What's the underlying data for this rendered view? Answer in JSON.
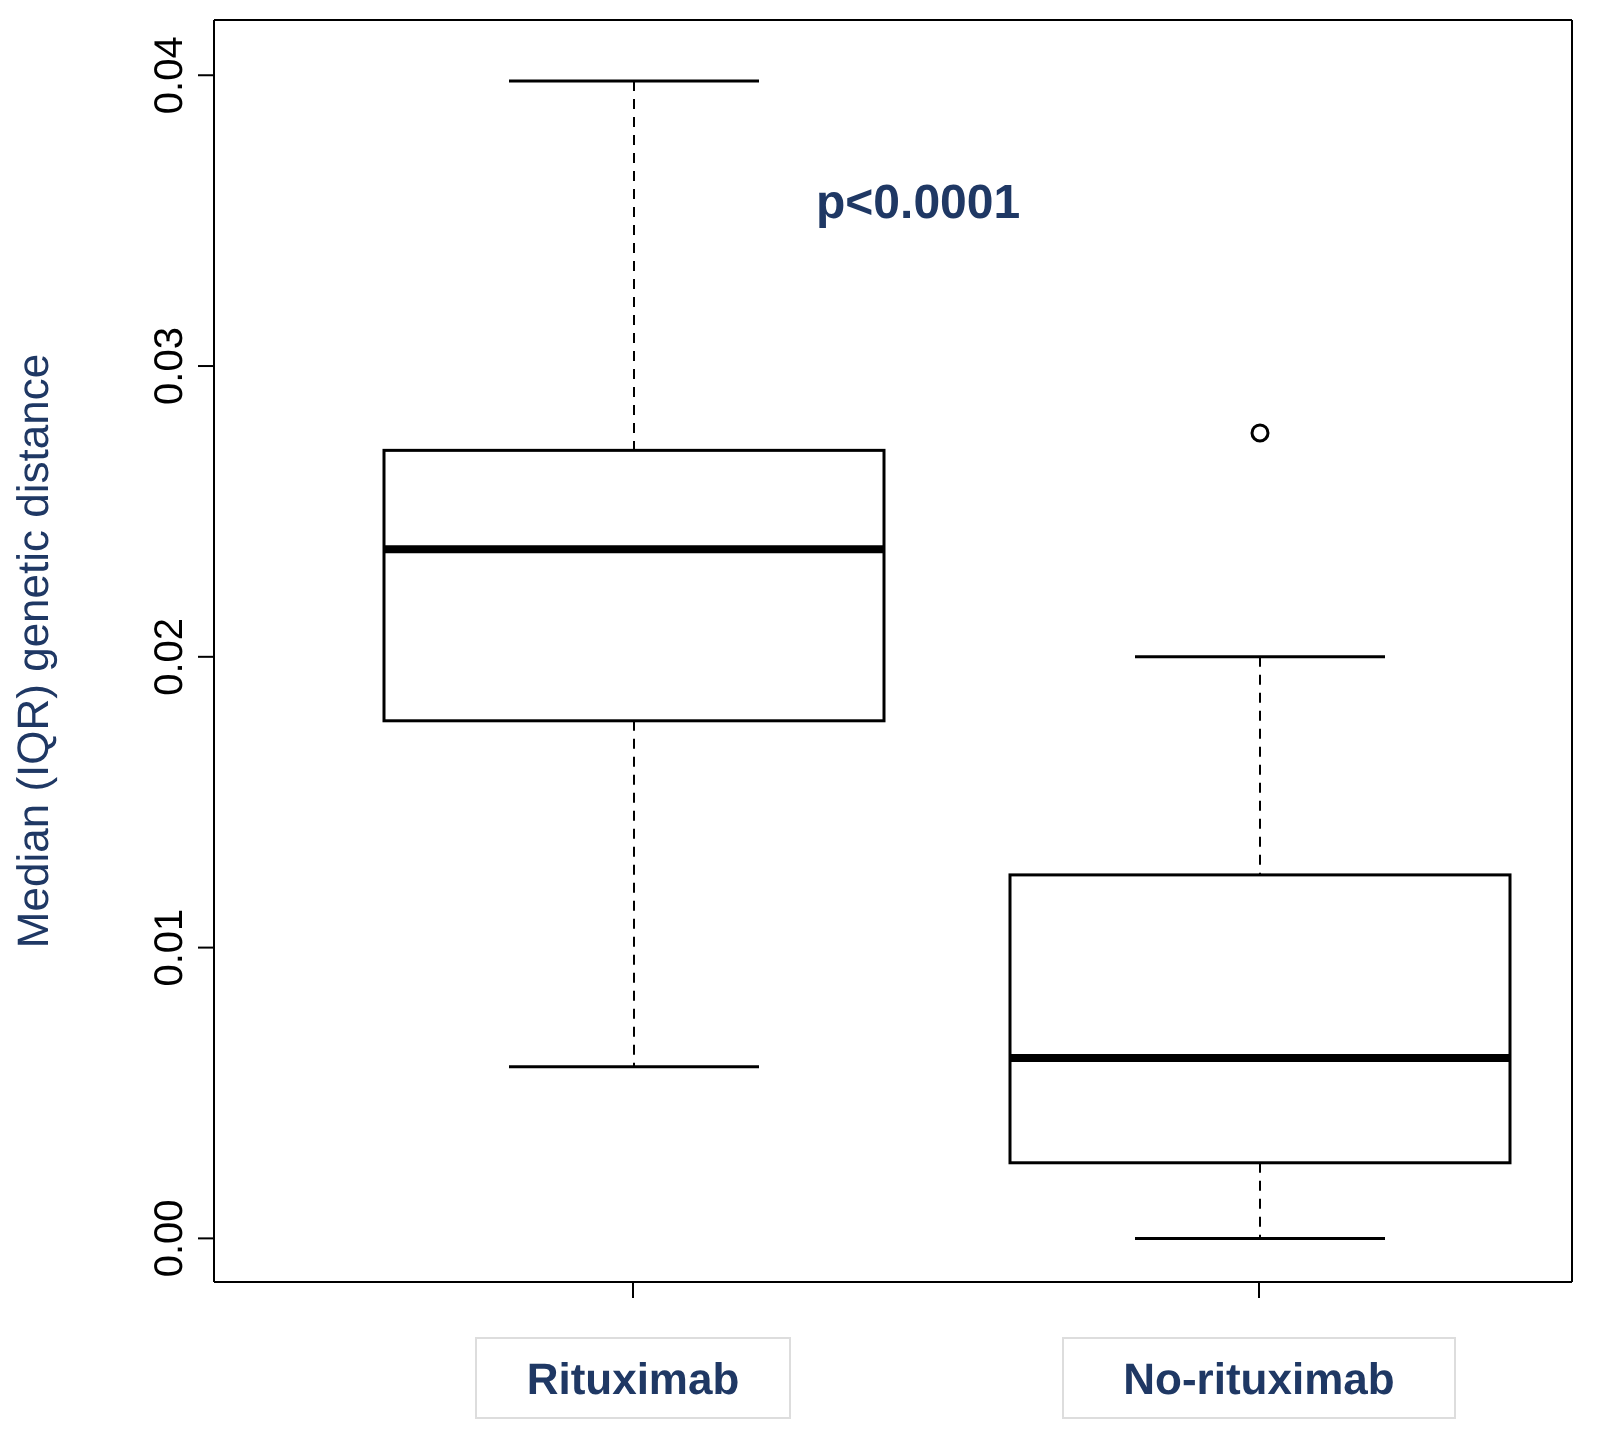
{
  "chart_data": {
    "type": "box",
    "ylabel": "Median (IQR) genetic distance",
    "categories": [
      "Rituximab",
      "No-rituximab"
    ],
    "boxes": [
      {
        "low": 0.0059,
        "q1": 0.0178,
        "median": 0.0237,
        "q3": 0.0271,
        "high": 0.0398
      },
      {
        "low": 0.0,
        "q1": 0.0026,
        "median": 0.0062,
        "q3": 0.0125,
        "high": 0.02,
        "outliers": [
          0.0277
        ]
      }
    ],
    "ylim": [
      -0.0015,
      0.0419
    ],
    "yticks": [
      {
        "value": 0,
        "label": "0.00"
      },
      {
        "value": 0.01,
        "label": "0.01"
      },
      {
        "value": 0.02,
        "label": "0.02"
      },
      {
        "value": 0.03,
        "label": "0.03"
      },
      {
        "value": 0.04,
        "label": "0.04"
      }
    ],
    "annotations": [
      "p<0.0001"
    ]
  }
}
